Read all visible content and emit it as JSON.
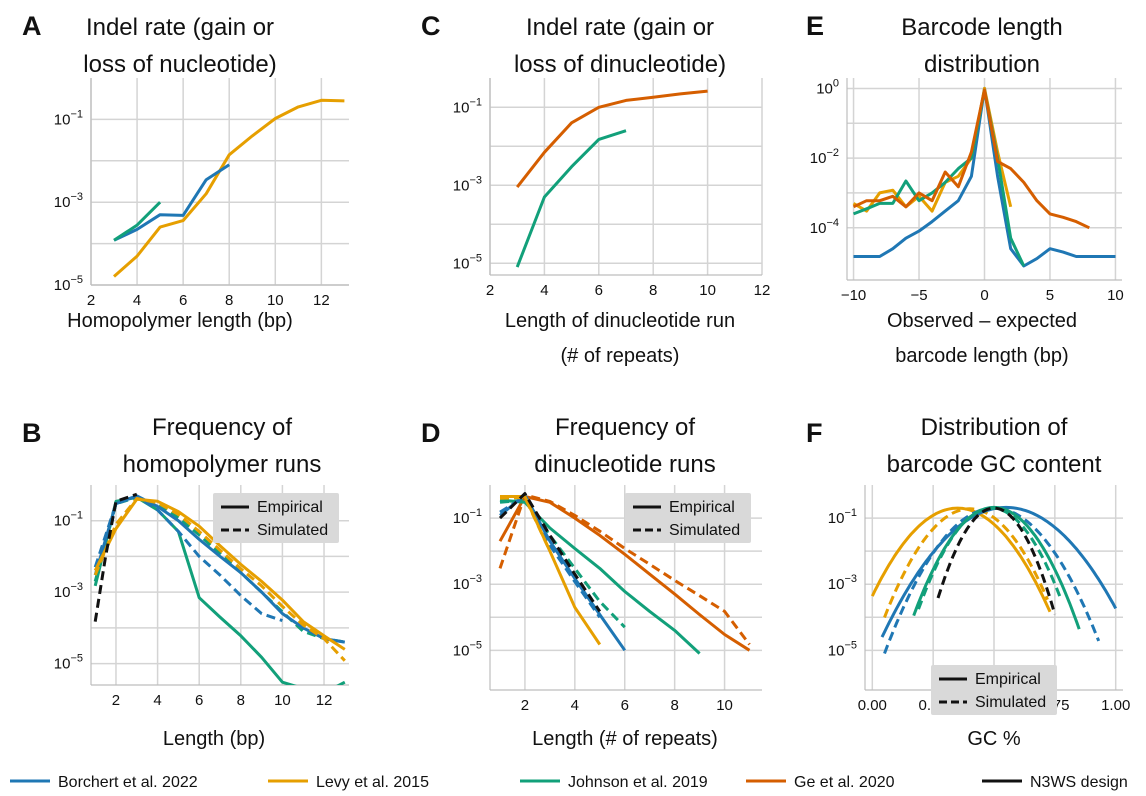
{
  "global_legend": [
    {
      "name": "Borchert et al. 2022",
      "color": "#1f77b4"
    },
    {
      "name": "Levy et al. 2015",
      "color": "#e69f00"
    },
    {
      "name": "Johnson et al. 2019",
      "color": "#12a07a"
    },
    {
      "name": "Ge et al. 2020",
      "color": "#d55e00"
    },
    {
      "name": "N3WS design",
      "color": "#111111"
    }
  ],
  "style_legend": {
    "solid": "Empirical",
    "dashed": "Simulated"
  },
  "chart_data": [
    {
      "id": "A",
      "type": "line",
      "letter": "A",
      "title": [
        "Indel rate (gain or",
        "loss of nucleotide)"
      ],
      "xlabel": [
        "Homopolymer length (bp)"
      ],
      "ylabel": "",
      "xlim": [
        2,
        13.2
      ],
      "ylim_log10": [
        -5,
        0
      ],
      "xticks": [
        2,
        4,
        6,
        8,
        10,
        12
      ],
      "yticks_exp": [
        -5,
        -3,
        -1
      ],
      "grid": true,
      "style_legend": false,
      "series": [
        {
          "color": "#e69f00",
          "style": "solid",
          "x": [
            3,
            4,
            5,
            6,
            7,
            8,
            9,
            10,
            11,
            12,
            13
          ],
          "y": [
            1.6e-05,
            5e-05,
            0.00025,
            0.00036,
            0.0016,
            0.014,
            0.04,
            0.105,
            0.2,
            0.29,
            0.28
          ]
        },
        {
          "color": "#1f77b4",
          "style": "solid",
          "x": [
            3,
            4,
            5,
            6,
            7,
            8
          ],
          "y": [
            0.00012,
            0.00022,
            0.0005,
            0.00048,
            0.0035,
            0.008
          ]
        },
        {
          "color": "#12a07a",
          "style": "solid",
          "x": [
            3,
            4,
            5
          ],
          "y": [
            0.00012,
            0.00028,
            0.001
          ]
        }
      ]
    },
    {
      "id": "B",
      "type": "line",
      "letter": "B",
      "title": [
        "Frequency of",
        "homopolymer runs"
      ],
      "xlabel": [
        "Length (bp)"
      ],
      "ylabel": "",
      "xlim": [
        0.8,
        13.2
      ],
      "ylim_log10": [
        -5.6,
        0
      ],
      "xticks": [
        2,
        4,
        6,
        8,
        10,
        12
      ],
      "yticks_exp": [
        -5,
        -3,
        -1
      ],
      "grid": true,
      "style_legend": true,
      "series": [
        {
          "color": "#12a07a",
          "style": "solid",
          "x": [
            1,
            2,
            3,
            4,
            5,
            6,
            7,
            8,
            9,
            10,
            11,
            12,
            13
          ],
          "y": [
            0.0015,
            0.35,
            0.45,
            0.2,
            0.05,
            0.0007,
            0.0002,
            6e-05,
            1.5e-05,
            3e-06,
            2e-06,
            1.5e-06,
            3e-06
          ]
        },
        {
          "color": "#12a07a",
          "style": "dashed",
          "x": [
            1,
            2,
            3,
            4,
            5,
            6,
            7,
            8,
            9,
            10,
            11,
            12,
            13
          ],
          "y": [
            0.002,
            0.3,
            0.45,
            0.3,
            0.12,
            0.04,
            0.012,
            0.0035,
            0.001,
            0.00028,
            8e-05,
            5e-05,
            4e-05
          ]
        },
        {
          "color": "#1f77b4",
          "style": "solid",
          "x": [
            1,
            2,
            3,
            4,
            5,
            6,
            7,
            8,
            9,
            10,
            11,
            12,
            13
          ],
          "y": [
            0.003,
            0.3,
            0.5,
            0.25,
            0.1,
            0.03,
            0.01,
            0.0035,
            0.001,
            0.00025,
            0.0001,
            5e-05,
            4e-05
          ]
        },
        {
          "color": "#1f77b4",
          "style": "dashed",
          "x": [
            1,
            2,
            3,
            4,
            5,
            6,
            7,
            8,
            9,
            10
          ],
          "y": [
            0.005,
            0.3,
            0.48,
            0.2,
            0.05,
            0.01,
            0.003,
            0.0008,
            0.00025,
            0.00016
          ]
        },
        {
          "color": "#e69f00",
          "style": "solid",
          "x": [
            1,
            2,
            3,
            4,
            5,
            6,
            7,
            8,
            9,
            10,
            11,
            12,
            13
          ],
          "y": [
            0.004,
            0.06,
            0.4,
            0.35,
            0.18,
            0.07,
            0.02,
            0.006,
            0.002,
            0.0006,
            0.00015,
            6e-05,
            2.5e-05
          ]
        },
        {
          "color": "#e69f00",
          "style": "dashed",
          "x": [
            1,
            2,
            3,
            4,
            5,
            6,
            7,
            8,
            9,
            10,
            11,
            12,
            13
          ],
          "y": [
            0.003,
            0.08,
            0.42,
            0.32,
            0.15,
            0.05,
            0.015,
            0.0045,
            0.0015,
            0.0004,
            0.00012,
            5e-05,
            1.2e-05
          ]
        },
        {
          "color": "#111111",
          "style": "dashed",
          "x": [
            1,
            1.5,
            2,
            3
          ],
          "y": [
            0.00015,
            0.01,
            0.35,
            0.55
          ]
        }
      ]
    },
    {
      "id": "C",
      "type": "line",
      "letter": "C",
      "title": [
        "Indel rate (gain or",
        "loss of dinucleotide)"
      ],
      "xlabel": [
        "Length of dinucleotide run",
        "(# of repeats)"
      ],
      "ylabel": "",
      "xlim": [
        2,
        12
      ],
      "ylim_log10": [
        -5.3,
        -0.25
      ],
      "xticks": [
        2,
        4,
        6,
        8,
        10,
        12
      ],
      "yticks_exp": [
        -5,
        -3,
        -1
      ],
      "grid": true,
      "style_legend": false,
      "series": [
        {
          "color": "#d55e00",
          "style": "solid",
          "x": [
            3,
            4,
            5,
            6,
            7,
            8,
            9,
            10
          ],
          "y": [
            0.0009,
            0.007,
            0.04,
            0.1,
            0.15,
            0.18,
            0.22,
            0.26
          ]
        },
        {
          "color": "#12a07a",
          "style": "solid",
          "x": [
            3,
            4,
            5,
            6,
            7
          ],
          "y": [
            8e-06,
            0.0005,
            0.003,
            0.015,
            0.025
          ]
        }
      ]
    },
    {
      "id": "D",
      "type": "line",
      "letter": "D",
      "title": [
        "Frequency of",
        "dinucleotide runs"
      ],
      "xlabel": [
        "Length (# of repeats)"
      ],
      "ylabel": "",
      "xlim": [
        0.6,
        11.5
      ],
      "ylim_log10": [
        -6.2,
        0
      ],
      "xticks": [
        2,
        4,
        6,
        8,
        10
      ],
      "yticks_exp": [
        -5,
        -3,
        -1
      ],
      "grid": true,
      "style_legend": true,
      "series": [
        {
          "color": "#d55e00",
          "style": "solid",
          "x": [
            1,
            2,
            3,
            4,
            5,
            6,
            7,
            8,
            9,
            10,
            11
          ],
          "y": [
            0.02,
            0.45,
            0.3,
            0.1,
            0.03,
            0.008,
            0.002,
            0.0005,
            0.00012,
            3e-05,
            1e-05
          ]
        },
        {
          "color": "#d55e00",
          "style": "dashed",
          "x": [
            1,
            2,
            3,
            4,
            5,
            6,
            7,
            8,
            9,
            10,
            11
          ],
          "y": [
            0.003,
            0.5,
            0.32,
            0.12,
            0.04,
            0.012,
            0.004,
            0.0013,
            0.00045,
            0.00015,
            1.5e-05
          ]
        },
        {
          "color": "#12a07a",
          "style": "solid",
          "x": [
            1,
            2,
            3,
            4,
            5,
            6,
            7,
            8,
            9
          ],
          "y": [
            0.35,
            0.3,
            0.05,
            0.012,
            0.003,
            0.0006,
            0.00015,
            4e-05,
            8e-06
          ]
        },
        {
          "color": "#12a07a",
          "style": "dashed",
          "x": [
            1,
            2,
            3,
            4,
            5,
            6
          ],
          "y": [
            0.3,
            0.35,
            0.03,
            0.003,
            0.0003,
            5e-05
          ]
        },
        {
          "color": "#1f77b4",
          "style": "solid",
          "x": [
            1,
            2,
            3,
            4,
            5,
            6
          ],
          "y": [
            0.12,
            0.5,
            0.02,
            0.0015,
            0.00012,
            1e-05
          ]
        },
        {
          "color": "#1f77b4",
          "style": "dashed",
          "x": [
            1,
            2,
            3,
            4,
            5
          ],
          "y": [
            0.15,
            0.45,
            0.015,
            0.0012,
            0.0001
          ]
        },
        {
          "color": "#e69f00",
          "style": "solid",
          "x": [
            1,
            2,
            3,
            4,
            5
          ],
          "y": [
            0.45,
            0.45,
            0.01,
            0.0002,
            1.5e-05
          ]
        },
        {
          "color": "#e69f00",
          "style": "dashed",
          "x": [
            1,
            2,
            3
          ],
          "y": [
            0.4,
            0.42,
            0.01
          ]
        },
        {
          "color": "#111111",
          "style": "dashed",
          "x": [
            1,
            2,
            3,
            4,
            5
          ],
          "y": [
            0.1,
            0.55,
            0.03,
            0.002,
            0.00015
          ]
        }
      ]
    },
    {
      "id": "E",
      "type": "line",
      "letter": "E",
      "title": [
        "Barcode length",
        "distribution"
      ],
      "xlabel": [
        "Observed – expected",
        "barcode length (bp)"
      ],
      "ylabel": "",
      "xlim": [
        -10.5,
        10.5
      ],
      "ylim_log10": [
        -5.5,
        0.3
      ],
      "xticks": [
        -10,
        -5,
        0,
        5,
        10
      ],
      "yticks_exp": [
        -4,
        -2,
        0
      ],
      "grid": true,
      "style_legend": false,
      "series": [
        {
          "color": "#1f77b4",
          "style": "solid",
          "x": [
            -10,
            -9,
            -8,
            -7,
            -6,
            -5,
            -4,
            -3,
            -2,
            -1,
            0,
            1,
            2,
            3,
            4,
            5,
            6,
            7,
            8,
            9,
            10
          ],
          "y": [
            1.5e-05,
            1.5e-05,
            1.5e-05,
            2.5e-05,
            5e-05,
            8e-05,
            0.00015,
            0.0003,
            0.0006,
            0.003,
            1,
            0.003,
            2.5e-05,
            8e-06,
            1.3e-05,
            2.5e-05,
            2e-05,
            1.5e-05,
            1.5e-05,
            1.5e-05,
            1.5e-05
          ]
        },
        {
          "color": "#e69f00",
          "style": "solid",
          "x": [
            -10,
            -9,
            -8,
            -7,
            -6,
            -5,
            -4,
            -3,
            -2,
            -1,
            0,
            1,
            2
          ],
          "y": [
            0.0005,
            0.0003,
            0.001,
            0.0012,
            0.0004,
            0.0008,
            0.0003,
            0.002,
            0.003,
            0.01,
            1,
            0.015,
            0.0004
          ]
        },
        {
          "color": "#12a07a",
          "style": "solid",
          "x": [
            -10,
            -9,
            -8,
            -7,
            -6,
            -5,
            -4,
            -3,
            -2,
            -1,
            0,
            1,
            2,
            3
          ],
          "y": [
            0.00025,
            0.00035,
            0.0005,
            0.0005,
            0.0022,
            0.0006,
            0.001,
            0.002,
            0.005,
            0.01,
            0.9,
            0.01,
            5e-05,
            8e-06
          ]
        },
        {
          "color": "#d55e00",
          "style": "solid",
          "x": [
            -10,
            -9,
            -8,
            -7,
            -6,
            -5,
            -4,
            -3,
            -2,
            -1,
            0,
            1,
            2,
            3,
            4,
            5,
            6,
            7,
            8
          ],
          "y": [
            0.0004,
            0.0006,
            0.0006,
            0.0008,
            0.0004,
            0.001,
            0.0006,
            0.004,
            0.0015,
            0.015,
            0.9,
            0.008,
            0.005,
            0.002,
            0.0006,
            0.00025,
            0.0002,
            0.00015,
            0.0001
          ]
        }
      ]
    },
    {
      "id": "F",
      "type": "line",
      "letter": "F",
      "title": [
        "Distribution of",
        "barcode GC content"
      ],
      "xlabel": [
        "GC %"
      ],
      "ylabel": "",
      "xlim": [
        -0.03,
        1.03
      ],
      "ylim_log10": [
        -6.2,
        0
      ],
      "xticks": [
        0,
        0.25,
        0.5,
        0.75,
        1
      ],
      "xticklabels": [
        "0.00",
        "0.25",
        "0.50",
        "0.75",
        "1.00"
      ],
      "yticks_exp": [
        -5,
        -3,
        -1
      ],
      "grid": true,
      "style_legend": true,
      "series": [
        {
          "color": "#e69f00",
          "style": "solid",
          "mu": 0.35,
          "sigma": 0.1,
          "peak": 0.2,
          "lo": 0.0,
          "hi": 0.73
        },
        {
          "color": "#e69f00",
          "style": "dashed",
          "mu": 0.4,
          "sigma": 0.09,
          "peak": 0.19,
          "lo": 0.05,
          "hi": 0.72
        },
        {
          "color": "#1f77b4",
          "style": "solid",
          "mu": 0.55,
          "sigma": 0.12,
          "peak": 0.21,
          "lo": 0.04,
          "hi": 1.0
        },
        {
          "color": "#1f77b4",
          "style": "dashed",
          "mu": 0.5,
          "sigma": 0.1,
          "peak": 0.2,
          "lo": 0.05,
          "hi": 0.93
        },
        {
          "color": "#12a07a",
          "style": "solid",
          "mu": 0.5,
          "sigma": 0.085,
          "peak": 0.21,
          "lo": 0.17,
          "hi": 0.85
        },
        {
          "color": "#12a07a",
          "style": "dashed",
          "mu": 0.49,
          "sigma": 0.08,
          "peak": 0.2,
          "lo": 0.19,
          "hi": 0.77
        },
        {
          "color": "#111111",
          "style": "dashed",
          "mu": 0.5,
          "sigma": 0.065,
          "peak": 0.2,
          "lo": 0.27,
          "hi": 0.75
        }
      ]
    }
  ]
}
